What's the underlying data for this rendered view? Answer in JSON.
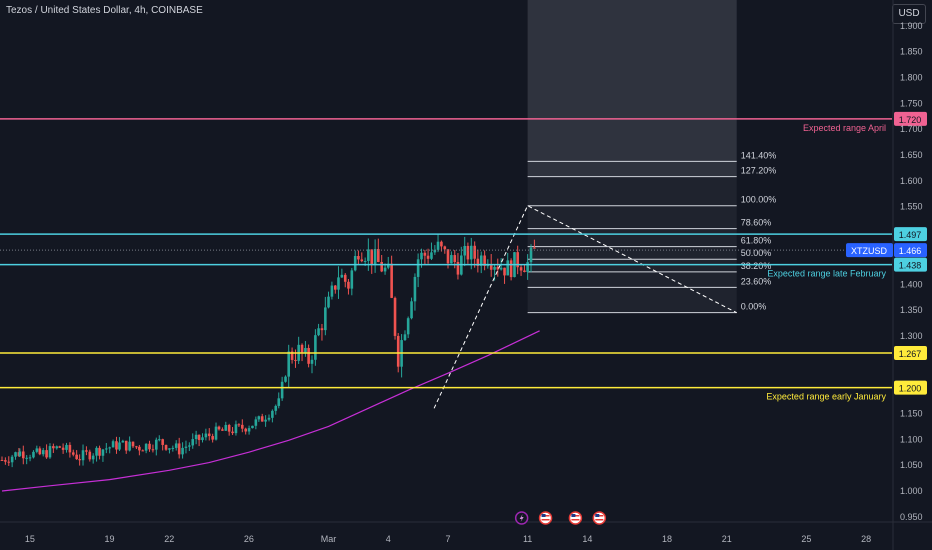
{
  "header": {
    "title": "Tezos / United States Dollar, 4h, COINBASE",
    "currency": "USD"
  },
  "colors": {
    "background": "#131722",
    "up": "#26a69a",
    "down": "#ef5350",
    "pink": "#f06292",
    "cyan": "#4dd0e1",
    "yellow": "#ffeb3b",
    "ma": "#c62fd6",
    "axis_text": "#b2b5be",
    "price_tag": "#2962ff"
  },
  "chart_data": {
    "type": "candlestick",
    "symbol": "XTZUSD",
    "timeframe": "4h",
    "ylim": [
      0.94,
      1.95
    ],
    "y_ticks": [
      0.95,
      1.0,
      1.05,
      1.1,
      1.15,
      1.2,
      1.25,
      1.3,
      1.35,
      1.4,
      1.45,
      1.5,
      1.55,
      1.6,
      1.65,
      1.7,
      1.75,
      1.8,
      1.85,
      1.9
    ],
    "y_tick_labels": [
      "0.950",
      "1.000",
      "1.050",
      "1.100",
      "1.150",
      "1.200",
      "1.250",
      "1.300",
      "1.350",
      "1.400",
      "1.450",
      "1.500",
      "1.550",
      "1.600",
      "1.650",
      "1.700",
      "1.750",
      "1.800",
      "1.850",
      "1.900"
    ],
    "x_ticks": [
      {
        "label": "15",
        "day": 15
      },
      {
        "label": "19",
        "day": 19
      },
      {
        "label": "22",
        "day": 22
      },
      {
        "label": "26",
        "day": 26
      },
      {
        "label": "Mar",
        "day": 30
      },
      {
        "label": "4",
        "day": 33
      },
      {
        "label": "7",
        "day": 36
      },
      {
        "label": "11",
        "day": 40
      },
      {
        "label": "14",
        "day": 43
      },
      {
        "label": "18",
        "day": 47
      },
      {
        "label": "21",
        "day": 50
      },
      {
        "label": "25",
        "day": 54
      },
      {
        "label": "28",
        "day": 57
      }
    ],
    "x_range_days": [
      13.5,
      58.3
    ],
    "candles_anchor_close": [
      [
        13.6,
        1.06
      ],
      [
        14.5,
        1.075
      ],
      [
        15.5,
        1.07
      ],
      [
        16.5,
        1.085
      ],
      [
        17.5,
        1.065
      ],
      [
        18.5,
        1.08
      ],
      [
        19.5,
        1.09
      ],
      [
        20.5,
        1.085
      ],
      [
        21.5,
        1.095
      ],
      [
        22.5,
        1.08
      ],
      [
        23.5,
        1.1
      ],
      [
        24.5,
        1.115
      ],
      [
        25.5,
        1.12
      ],
      [
        26.5,
        1.135
      ],
      [
        27.5,
        1.17
      ],
      [
        28.0,
        1.26
      ],
      [
        28.5,
        1.27
      ],
      [
        29.0,
        1.25
      ],
      [
        29.5,
        1.31
      ],
      [
        30.0,
        1.36
      ],
      [
        30.5,
        1.42
      ],
      [
        31.0,
        1.4
      ],
      [
        31.5,
        1.47
      ],
      [
        32.0,
        1.46
      ],
      [
        32.5,
        1.44
      ],
      [
        33.0,
        1.42
      ],
      [
        33.5,
        1.26
      ],
      [
        34.0,
        1.35
      ],
      [
        34.5,
        1.45
      ],
      [
        35.0,
        1.46
      ],
      [
        35.5,
        1.47
      ],
      [
        36.0,
        1.45
      ],
      [
        36.5,
        1.44
      ],
      [
        37.0,
        1.46
      ],
      [
        37.5,
        1.45
      ],
      [
        38.0,
        1.455
      ],
      [
        38.5,
        1.44
      ],
      [
        39.0,
        1.43
      ],
      [
        39.5,
        1.445
      ],
      [
        40.0,
        1.44
      ],
      [
        40.4,
        1.466
      ]
    ],
    "horizontal_levels": [
      {
        "value": 1.72,
        "label": "1.720",
        "color_key": "pink",
        "note": "Expected range April"
      },
      {
        "value": 1.497,
        "label": "1.497",
        "color_key": "cyan",
        "note": ""
      },
      {
        "value": 1.438,
        "label": "1.438",
        "color_key": "cyan",
        "note": "Expected range late February"
      },
      {
        "value": 1.267,
        "label": "1.267",
        "color_key": "yellow",
        "note": ""
      },
      {
        "value": 1.2,
        "label": "1.200",
        "color_key": "yellow",
        "note": "Expected range early January"
      }
    ],
    "current_price": {
      "symbol": "XTZUSD",
      "value": 1.466,
      "label": "1.466"
    },
    "fibonacci": {
      "from": 1.345,
      "to": 1.552,
      "start_day": 40.0,
      "end_day": 50.5,
      "levels": [
        {
          "ratio": 0.0,
          "label": "0.00%"
        },
        {
          "ratio": 0.236,
          "label": "23.60%"
        },
        {
          "ratio": 0.382,
          "label": "38.20%"
        },
        {
          "ratio": 0.5,
          "label": "50.00%"
        },
        {
          "ratio": 0.618,
          "label": "61.80%"
        },
        {
          "ratio": 0.786,
          "label": "78.60%"
        },
        {
          "ratio": 1.0,
          "label": "100.00%"
        },
        {
          "ratio": 1.272,
          "label": "127.20%"
        },
        {
          "ratio": 1.414,
          "label": "141.40%"
        }
      ]
    },
    "dashed_path": [
      [
        35.3,
        1.16
      ],
      [
        40.0,
        1.552
      ],
      [
        50.5,
        1.345
      ]
    ],
    "moving_average": [
      [
        13.6,
        1.0
      ],
      [
        16,
        1.01
      ],
      [
        19,
        1.022
      ],
      [
        22,
        1.04
      ],
      [
        24,
        1.055
      ],
      [
        26,
        1.075
      ],
      [
        28,
        1.098
      ],
      [
        30,
        1.125
      ],
      [
        32,
        1.16
      ],
      [
        34,
        1.195
      ],
      [
        36,
        1.228
      ],
      [
        38,
        1.262
      ],
      [
        40.6,
        1.31
      ]
    ],
    "event_icons": [
      {
        "name": "lightning-event-icon",
        "day": 39.7
      },
      {
        "name": "us-flag-event-icon",
        "day": 40.9
      },
      {
        "name": "us-flag-event-icon",
        "day": 42.4
      },
      {
        "name": "us-flag-event-icon",
        "day": 43.6
      }
    ]
  }
}
